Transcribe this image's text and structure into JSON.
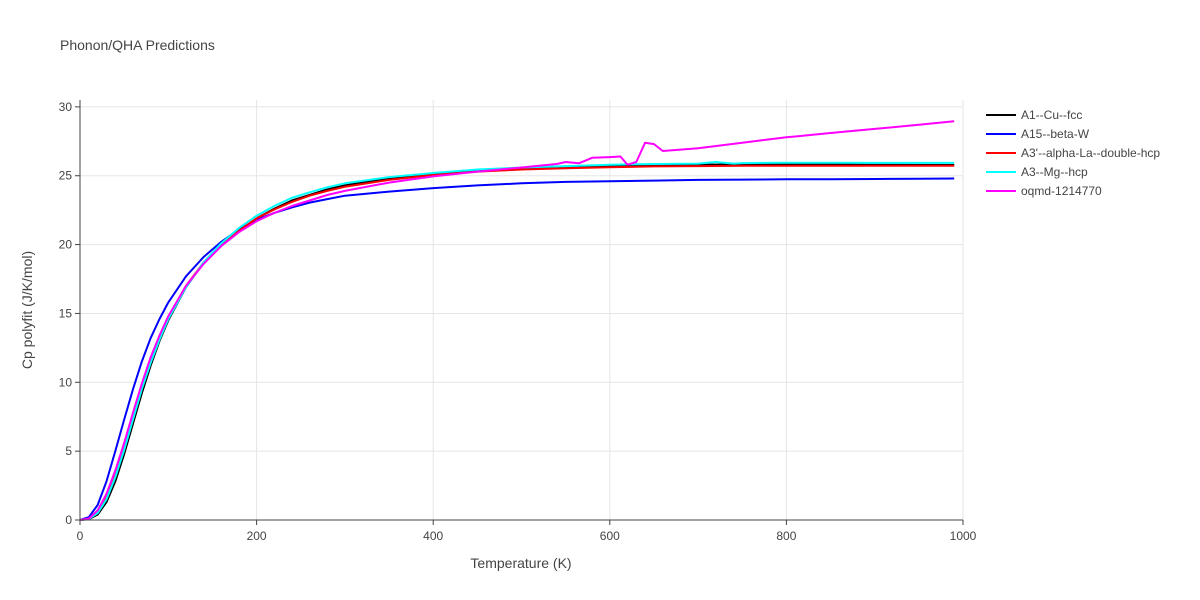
{
  "chart_data": {
    "type": "line",
    "title": "Phonon/QHA Predictions",
    "xlabel": "Temperature (K)",
    "ylabel": "Cp polyfit (J/K/mol)",
    "xlim": [
      0,
      1000
    ],
    "ylim": [
      0,
      30.5
    ],
    "xticks": [
      0,
      200,
      400,
      600,
      800,
      1000
    ],
    "yticks": [
      0,
      5,
      10,
      15,
      20,
      25,
      30
    ],
    "grid": true,
    "legend_position": "top-right, outside plot",
    "series": [
      {
        "name": "A1--Cu--fcc",
        "color": "#000000",
        "x": [
          0,
          10,
          20,
          30,
          40,
          50,
          60,
          70,
          80,
          90,
          100,
          120,
          140,
          160,
          180,
          200,
          220,
          240,
          260,
          280,
          300,
          350,
          400,
          450,
          500,
          550,
          600,
          650,
          700,
          750,
          800,
          850,
          900,
          950,
          990
        ],
        "y": [
          0,
          0.05,
          0.4,
          1.3,
          2.8,
          4.8,
          7.0,
          9.2,
          11.2,
          13.0,
          14.5,
          16.9,
          18.7,
          20.0,
          21.0,
          21.9,
          22.6,
          23.2,
          23.6,
          24.0,
          24.3,
          24.8,
          25.1,
          25.35,
          25.5,
          25.6,
          25.7,
          25.75,
          25.8,
          25.82,
          25.84,
          25.82,
          25.8,
          25.79,
          25.78
        ]
      },
      {
        "name": "A15--beta-W",
        "color": "#0000ff",
        "x": [
          0,
          10,
          20,
          30,
          40,
          50,
          60,
          70,
          80,
          90,
          100,
          120,
          140,
          160,
          180,
          200,
          220,
          240,
          260,
          280,
          300,
          350,
          400,
          450,
          500,
          550,
          600,
          650,
          700,
          750,
          800,
          850,
          900,
          950,
          990
        ],
        "y": [
          0,
          0.2,
          1.1,
          2.8,
          5.0,
          7.3,
          9.5,
          11.5,
          13.2,
          14.6,
          15.8,
          17.7,
          19.1,
          20.2,
          21.1,
          21.8,
          22.3,
          22.7,
          23.05,
          23.3,
          23.55,
          23.85,
          24.1,
          24.3,
          24.45,
          24.55,
          24.6,
          24.65,
          24.7,
          24.72,
          24.74,
          24.75,
          24.76,
          24.78,
          24.8
        ]
      },
      {
        "name": "A3'--alpha-La--double-hcp",
        "color": "#ff0000",
        "x": [
          0,
          10,
          20,
          30,
          40,
          50,
          60,
          70,
          80,
          90,
          100,
          120,
          140,
          160,
          180,
          200,
          220,
          240,
          260,
          280,
          300,
          350,
          400,
          450,
          500,
          550,
          600,
          650,
          700,
          750,
          800,
          850,
          900,
          950,
          990
        ],
        "y": [
          0,
          0.08,
          0.55,
          1.6,
          3.2,
          5.2,
          7.4,
          9.6,
          11.5,
          13.2,
          14.7,
          17.0,
          18.7,
          20.0,
          21.0,
          21.9,
          22.55,
          23.1,
          23.55,
          23.9,
          24.2,
          24.7,
          25.05,
          25.3,
          25.45,
          25.55,
          25.62,
          25.68,
          25.7,
          25.72,
          25.73,
          25.73,
          25.73,
          25.73,
          25.73
        ]
      },
      {
        "name": "A3--Mg--hcp",
        "color": "#00ffff",
        "x": [
          0,
          10,
          20,
          30,
          40,
          50,
          60,
          70,
          80,
          90,
          100,
          120,
          140,
          160,
          180,
          200,
          220,
          240,
          260,
          280,
          300,
          350,
          400,
          450,
          500,
          550,
          600,
          650,
          700,
          720,
          740,
          750,
          800,
          850,
          900,
          950,
          990
        ],
        "y": [
          0,
          0.07,
          0.5,
          1.5,
          3.1,
          5.1,
          7.3,
          9.5,
          11.4,
          13.1,
          14.6,
          16.9,
          18.7,
          20.1,
          21.2,
          22.1,
          22.8,
          23.4,
          23.8,
          24.15,
          24.45,
          24.9,
          25.2,
          25.45,
          25.6,
          25.7,
          25.8,
          25.85,
          25.88,
          26.0,
          25.88,
          25.92,
          25.95,
          25.95,
          25.93,
          25.93,
          25.93
        ]
      },
      {
        "name": "oqmd-1214770",
        "color": "#ff00ff",
        "x": [
          0,
          10,
          20,
          30,
          40,
          50,
          60,
          70,
          80,
          90,
          100,
          120,
          140,
          160,
          180,
          200,
          220,
          240,
          260,
          280,
          300,
          350,
          400,
          450,
          500,
          540,
          550,
          565,
          580,
          600,
          612,
          620,
          630,
          640,
          650,
          660,
          680,
          700,
          750,
          800,
          810,
          850,
          900,
          950,
          990
        ],
        "y": [
          0,
          0.1,
          0.7,
          1.9,
          3.6,
          5.6,
          7.8,
          9.9,
          11.8,
          13.4,
          14.8,
          17.0,
          18.6,
          19.9,
          20.9,
          21.7,
          22.3,
          22.8,
          23.2,
          23.6,
          23.9,
          24.5,
          24.95,
          25.3,
          25.6,
          25.85,
          26.0,
          25.9,
          26.3,
          26.35,
          26.4,
          25.8,
          26.0,
          27.4,
          27.3,
          26.8,
          26.9,
          27.0,
          27.4,
          27.8,
          27.85,
          28.1,
          28.4,
          28.7,
          28.95
        ]
      }
    ]
  }
}
